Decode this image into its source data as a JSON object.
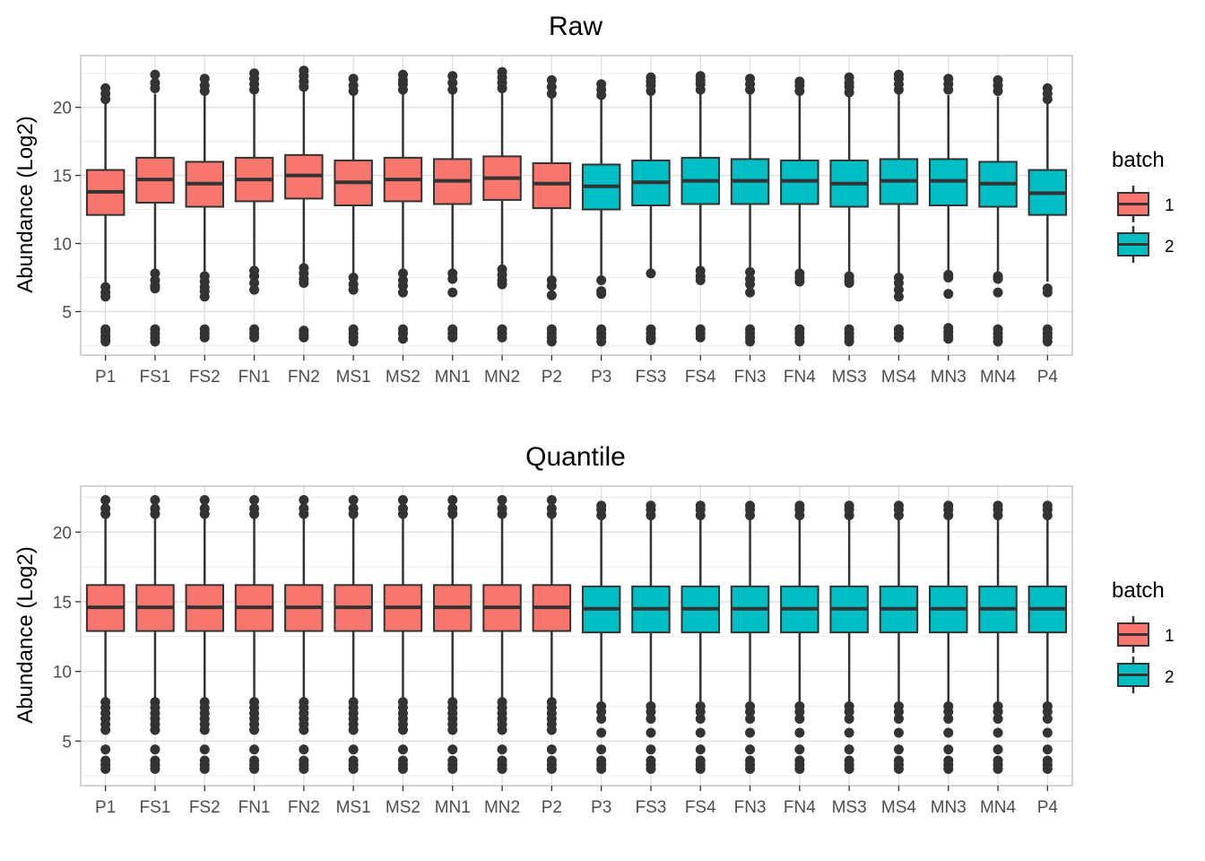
{
  "chart_data": [
    {
      "type": "box",
      "title": "Raw",
      "ylabel": "Abundance (Log2)",
      "ylim": [
        1.8,
        23.8
      ],
      "yticks": [
        5,
        10,
        15,
        20
      ],
      "grid": true,
      "legend_position": "right",
      "legend_title": "batch",
      "legend_entries": [
        {
          "label": "1",
          "color": "#F8766D"
        },
        {
          "label": "2",
          "color": "#00BFC4"
        }
      ],
      "categories": [
        "P1",
        "FS1",
        "FS2",
        "FN1",
        "FN2",
        "MS1",
        "MS2",
        "MN1",
        "MN2",
        "P2",
        "P3",
        "FS3",
        "FS4",
        "FN3",
        "FN4",
        "MS3",
        "MS4",
        "MN3",
        "MN4",
        "P4"
      ],
      "batch": [
        "1",
        "1",
        "1",
        "1",
        "1",
        "1",
        "1",
        "1",
        "1",
        "1",
        "2",
        "2",
        "2",
        "2",
        "2",
        "2",
        "2",
        "2",
        "2",
        "2"
      ],
      "boxes": [
        {
          "q1": 12.1,
          "median": 13.8,
          "q3": 15.4,
          "whisker_low": 7.0,
          "whisker_high": 20.4,
          "outliers_low": [
            6.8,
            6.4,
            6.1,
            3.7,
            3.5,
            3.2,
            3.0,
            2.8
          ],
          "outliers_high": [
            20.6,
            21.0,
            21.4
          ]
        },
        {
          "q1": 13.0,
          "median": 14.7,
          "q3": 16.3,
          "whisker_low": 8.0,
          "whisker_high": 21.0,
          "outliers_low": [
            7.8,
            7.3,
            6.9,
            6.7,
            3.7,
            3.4,
            3.1,
            2.8
          ],
          "outliers_high": [
            21.4,
            21.8,
            22.4
          ]
        },
        {
          "q1": 12.7,
          "median": 14.4,
          "q3": 16.0,
          "whisker_low": 7.8,
          "whisker_high": 20.9,
          "outliers_low": [
            7.6,
            7.2,
            6.8,
            6.5,
            6.1,
            3.7,
            3.4,
            3.1
          ],
          "outliers_high": [
            21.2,
            21.6,
            22.1
          ]
        },
        {
          "q1": 13.1,
          "median": 14.7,
          "q3": 16.3,
          "whisker_low": 8.1,
          "whisker_high": 21.0,
          "outliers_low": [
            8.0,
            7.6,
            7.1,
            6.6,
            3.7,
            3.4,
            3.1
          ],
          "outliers_high": [
            21.3,
            21.7,
            22.1,
            22.5
          ]
        },
        {
          "q1": 13.3,
          "median": 15.0,
          "q3": 16.5,
          "whisker_low": 8.4,
          "whisker_high": 21.2,
          "outliers_low": [
            8.2,
            7.8,
            7.4,
            7.1,
            3.6,
            3.3,
            3.1
          ],
          "outliers_high": [
            21.5,
            21.9,
            22.3,
            22.7
          ]
        },
        {
          "q1": 12.8,
          "median": 14.5,
          "q3": 16.1,
          "whisker_low": 7.7,
          "whisker_high": 20.9,
          "outliers_low": [
            7.5,
            7.0,
            6.6,
            3.7,
            3.4,
            3.1,
            2.8
          ],
          "outliers_high": [
            21.2,
            21.6,
            22.1
          ]
        },
        {
          "q1": 13.1,
          "median": 14.7,
          "q3": 16.3,
          "whisker_low": 8.0,
          "whisker_high": 21.0,
          "outliers_low": [
            7.8,
            7.3,
            6.9,
            6.4,
            3.7,
            3.4,
            3.0
          ],
          "outliers_high": [
            21.3,
            21.7,
            22.0,
            22.4
          ]
        },
        {
          "q1": 12.9,
          "median": 14.6,
          "q3": 16.2,
          "whisker_low": 8.0,
          "whisker_high": 21.0,
          "outliers_low": [
            7.8,
            7.4,
            6.4,
            3.7,
            3.4,
            3.1
          ],
          "outliers_high": [
            21.3,
            21.8,
            22.3
          ]
        },
        {
          "q1": 13.2,
          "median": 14.8,
          "q3": 16.4,
          "whisker_low": 8.3,
          "whisker_high": 21.1,
          "outliers_low": [
            8.1,
            7.7,
            7.3,
            7.0,
            3.7,
            3.4,
            3.1
          ],
          "outliers_high": [
            21.4,
            21.8,
            22.2,
            22.6
          ]
        },
        {
          "q1": 12.6,
          "median": 14.4,
          "q3": 15.9,
          "whisker_low": 7.6,
          "whisker_high": 20.7,
          "outliers_low": [
            7.3,
            6.9,
            6.2,
            3.7,
            3.4,
            3.1,
            2.8
          ],
          "outliers_high": [
            21.0,
            21.5,
            22.0
          ]
        },
        {
          "q1": 12.5,
          "median": 14.2,
          "q3": 15.8,
          "whisker_low": 7.5,
          "whisker_high": 20.6,
          "outliers_low": [
            7.3,
            6.5,
            6.3,
            3.7,
            3.4,
            3.1,
            2.8
          ],
          "outliers_high": [
            20.9,
            21.3,
            21.7
          ]
        },
        {
          "q1": 12.8,
          "median": 14.5,
          "q3": 16.1,
          "whisker_low": 8.0,
          "whisker_high": 20.9,
          "outliers_low": [
            7.8,
            3.7,
            3.4,
            3.1,
            2.9
          ],
          "outliers_high": [
            21.2,
            21.6,
            21.9,
            22.2
          ]
        },
        {
          "q1": 12.9,
          "median": 14.6,
          "q3": 16.3,
          "whisker_low": 8.1,
          "whisker_high": 21.0,
          "outliers_low": [
            8.0,
            7.6,
            7.3,
            3.7,
            3.4,
            3.1
          ],
          "outliers_high": [
            21.3,
            21.7,
            22.0,
            22.3
          ]
        },
        {
          "q1": 12.9,
          "median": 14.6,
          "q3": 16.2,
          "whisker_low": 8.0,
          "whisker_high": 21.0,
          "outliers_low": [
            7.9,
            7.4,
            7.0,
            6.4,
            3.7,
            3.4,
            3.1,
            2.8
          ],
          "outliers_high": [
            21.3,
            21.7,
            22.1
          ]
        },
        {
          "q1": 12.9,
          "median": 14.6,
          "q3": 16.1,
          "whisker_low": 8.0,
          "whisker_high": 20.9,
          "outliers_low": [
            7.8,
            7.5,
            7.2,
            3.7,
            3.4,
            3.1,
            2.8
          ],
          "outliers_high": [
            21.2,
            21.6,
            21.9
          ]
        },
        {
          "q1": 12.7,
          "median": 14.4,
          "q3": 16.1,
          "whisker_low": 7.8,
          "whisker_high": 20.8,
          "outliers_low": [
            7.6,
            7.3,
            7.1,
            3.7,
            3.4,
            3.1,
            2.8
          ],
          "outliers_high": [
            21.1,
            21.5,
            21.8,
            22.2
          ]
        },
        {
          "q1": 12.9,
          "median": 14.6,
          "q3": 16.2,
          "whisker_low": 7.7,
          "whisker_high": 21.0,
          "outliers_low": [
            7.5,
            7.1,
            6.6,
            6.1,
            3.7,
            3.4,
            3.1
          ],
          "outliers_high": [
            21.3,
            21.7,
            22.1,
            22.4
          ]
        },
        {
          "q1": 12.8,
          "median": 14.6,
          "q3": 16.2,
          "whisker_low": 7.9,
          "whisker_high": 20.9,
          "outliers_low": [
            7.7,
            7.5,
            6.3,
            3.8,
            3.5,
            3.2,
            3.0
          ],
          "outliers_high": [
            21.3,
            21.7,
            22.1
          ]
        },
        {
          "q1": 12.7,
          "median": 14.4,
          "q3": 16.0,
          "whisker_low": 7.8,
          "whisker_high": 20.8,
          "outliers_low": [
            7.6,
            7.4,
            6.4,
            3.7,
            3.4,
            3.1,
            2.8
          ],
          "outliers_high": [
            21.2,
            21.6,
            22.0
          ]
        },
        {
          "q1": 12.1,
          "median": 13.7,
          "q3": 15.4,
          "whisker_low": 7.2,
          "whisker_high": 20.4,
          "outliers_low": [
            6.7,
            6.4,
            3.7,
            3.4,
            3.1,
            2.8
          ],
          "outliers_high": [
            20.6,
            21.0,
            21.4
          ]
        }
      ]
    },
    {
      "type": "box",
      "title": "Quantile",
      "ylabel": "Abundance (Log2)",
      "ylim": [
        1.8,
        23.3
      ],
      "yticks": [
        5,
        10,
        15,
        20
      ],
      "grid": true,
      "legend_position": "right",
      "legend_title": "batch",
      "legend_entries": [
        {
          "label": "1",
          "color": "#F8766D"
        },
        {
          "label": "2",
          "color": "#00BFC4"
        }
      ],
      "categories": [
        "P1",
        "FS1",
        "FS2",
        "FN1",
        "FN2",
        "MS1",
        "MS2",
        "MN1",
        "MN2",
        "P2",
        "P3",
        "FS3",
        "FS4",
        "FN3",
        "FN4",
        "MS3",
        "MS4",
        "MN3",
        "MN4",
        "P4"
      ],
      "batch": [
        "1",
        "1",
        "1",
        "1",
        "1",
        "1",
        "1",
        "1",
        "1",
        "1",
        "2",
        "2",
        "2",
        "2",
        "2",
        "2",
        "2",
        "2",
        "2",
        "2"
      ],
      "boxes": [
        {
          "q1": 12.9,
          "median": 14.6,
          "q3": 16.2,
          "whisker_low": 8.0,
          "whisker_high": 21.0,
          "outliers_low": [
            7.8,
            7.4,
            7.0,
            6.6,
            6.2,
            5.8,
            4.4,
            3.6,
            3.3,
            3.0
          ],
          "outliers_high": [
            21.3,
            21.7,
            22.3
          ]
        },
        {
          "q1": 12.9,
          "median": 14.6,
          "q3": 16.2,
          "whisker_low": 8.0,
          "whisker_high": 21.0,
          "outliers_low": [
            7.8,
            7.4,
            7.0,
            6.6,
            6.2,
            5.8,
            4.4,
            3.6,
            3.3,
            3.0
          ],
          "outliers_high": [
            21.3,
            21.7,
            22.3
          ]
        },
        {
          "q1": 12.9,
          "median": 14.6,
          "q3": 16.2,
          "whisker_low": 8.0,
          "whisker_high": 21.0,
          "outliers_low": [
            7.8,
            7.4,
            7.0,
            6.6,
            6.2,
            5.8,
            4.4,
            3.6,
            3.3,
            3.0
          ],
          "outliers_high": [
            21.3,
            21.7,
            22.3
          ]
        },
        {
          "q1": 12.9,
          "median": 14.6,
          "q3": 16.2,
          "whisker_low": 8.0,
          "whisker_high": 21.0,
          "outliers_low": [
            7.8,
            7.4,
            7.0,
            6.6,
            6.2,
            5.8,
            4.4,
            3.6,
            3.3,
            3.0
          ],
          "outliers_high": [
            21.3,
            21.7,
            22.3
          ]
        },
        {
          "q1": 12.9,
          "median": 14.6,
          "q3": 16.2,
          "whisker_low": 8.0,
          "whisker_high": 21.0,
          "outliers_low": [
            7.8,
            7.4,
            7.0,
            6.6,
            6.2,
            5.8,
            4.4,
            3.6,
            3.3,
            3.0
          ],
          "outliers_high": [
            21.3,
            21.7,
            22.3
          ]
        },
        {
          "q1": 12.9,
          "median": 14.6,
          "q3": 16.2,
          "whisker_low": 8.0,
          "whisker_high": 21.0,
          "outliers_low": [
            7.8,
            7.4,
            7.0,
            6.6,
            6.2,
            5.8,
            4.4,
            3.6,
            3.3,
            3.0
          ],
          "outliers_high": [
            21.3,
            21.7,
            22.3
          ]
        },
        {
          "q1": 12.9,
          "median": 14.6,
          "q3": 16.2,
          "whisker_low": 8.0,
          "whisker_high": 21.0,
          "outliers_low": [
            7.8,
            7.4,
            7.0,
            6.6,
            6.2,
            5.8,
            4.4,
            3.6,
            3.3,
            3.0
          ],
          "outliers_high": [
            21.3,
            21.7,
            22.3
          ]
        },
        {
          "q1": 12.9,
          "median": 14.6,
          "q3": 16.2,
          "whisker_low": 8.0,
          "whisker_high": 21.0,
          "outliers_low": [
            7.8,
            7.4,
            7.0,
            6.6,
            6.2,
            5.8,
            4.4,
            3.6,
            3.3,
            3.0
          ],
          "outliers_high": [
            21.3,
            21.7,
            22.3
          ]
        },
        {
          "q1": 12.9,
          "median": 14.6,
          "q3": 16.2,
          "whisker_low": 8.0,
          "whisker_high": 21.0,
          "outliers_low": [
            7.8,
            7.4,
            7.0,
            6.6,
            6.2,
            5.8,
            4.4,
            3.6,
            3.3,
            3.0
          ],
          "outliers_high": [
            21.3,
            21.7,
            22.3
          ]
        },
        {
          "q1": 12.9,
          "median": 14.6,
          "q3": 16.2,
          "whisker_low": 8.0,
          "whisker_high": 21.0,
          "outliers_low": [
            7.8,
            7.4,
            7.0,
            6.6,
            6.2,
            5.8,
            4.4,
            3.6,
            3.3,
            3.0
          ],
          "outliers_high": [
            21.3,
            21.7,
            22.3
          ]
        },
        {
          "q1": 12.8,
          "median": 14.5,
          "q3": 16.1,
          "whisker_low": 7.7,
          "whisker_high": 20.9,
          "outliers_low": [
            7.5,
            7.1,
            6.6,
            5.6,
            4.4,
            3.6,
            3.3,
            3.0
          ],
          "outliers_high": [
            21.2,
            21.6,
            21.9
          ]
        },
        {
          "q1": 12.8,
          "median": 14.5,
          "q3": 16.1,
          "whisker_low": 7.7,
          "whisker_high": 20.9,
          "outliers_low": [
            7.5,
            7.1,
            6.6,
            5.6,
            4.4,
            3.6,
            3.3,
            3.0
          ],
          "outliers_high": [
            21.2,
            21.6,
            21.9
          ]
        },
        {
          "q1": 12.8,
          "median": 14.5,
          "q3": 16.1,
          "whisker_low": 7.7,
          "whisker_high": 20.9,
          "outliers_low": [
            7.5,
            7.1,
            6.6,
            5.6,
            4.4,
            3.6,
            3.3,
            3.0
          ],
          "outliers_high": [
            21.2,
            21.6,
            21.9
          ]
        },
        {
          "q1": 12.8,
          "median": 14.5,
          "q3": 16.1,
          "whisker_low": 7.7,
          "whisker_high": 20.9,
          "outliers_low": [
            7.5,
            7.1,
            6.6,
            5.6,
            4.4,
            3.6,
            3.3,
            3.0
          ],
          "outliers_high": [
            21.2,
            21.6,
            21.9
          ]
        },
        {
          "q1": 12.8,
          "median": 14.5,
          "q3": 16.1,
          "whisker_low": 7.7,
          "whisker_high": 20.9,
          "outliers_low": [
            7.5,
            7.1,
            6.6,
            5.6,
            4.4,
            3.6,
            3.3,
            3.0
          ],
          "outliers_high": [
            21.2,
            21.6,
            21.9
          ]
        },
        {
          "q1": 12.8,
          "median": 14.5,
          "q3": 16.1,
          "whisker_low": 7.7,
          "whisker_high": 20.9,
          "outliers_low": [
            7.5,
            7.1,
            6.6,
            5.6,
            4.4,
            3.6,
            3.3,
            3.0
          ],
          "outliers_high": [
            21.2,
            21.6,
            21.9
          ]
        },
        {
          "q1": 12.8,
          "median": 14.5,
          "q3": 16.1,
          "whisker_low": 7.7,
          "whisker_high": 20.9,
          "outliers_low": [
            7.5,
            7.1,
            6.6,
            5.6,
            4.4,
            3.6,
            3.3,
            3.0
          ],
          "outliers_high": [
            21.2,
            21.6,
            21.9
          ]
        },
        {
          "q1": 12.8,
          "median": 14.5,
          "q3": 16.1,
          "whisker_low": 7.7,
          "whisker_high": 20.9,
          "outliers_low": [
            7.5,
            7.1,
            6.6,
            5.6,
            4.4,
            3.6,
            3.3,
            3.0
          ],
          "outliers_high": [
            21.2,
            21.6,
            21.9
          ]
        },
        {
          "q1": 12.8,
          "median": 14.5,
          "q3": 16.1,
          "whisker_low": 7.7,
          "whisker_high": 20.9,
          "outliers_low": [
            7.5,
            7.1,
            6.6,
            5.6,
            4.4,
            3.6,
            3.3,
            3.0
          ],
          "outliers_high": [
            21.2,
            21.6,
            21.9
          ]
        },
        {
          "q1": 12.8,
          "median": 14.5,
          "q3": 16.1,
          "whisker_low": 7.7,
          "whisker_high": 20.9,
          "outliers_low": [
            7.5,
            7.1,
            6.6,
            5.6,
            4.4,
            3.6,
            3.3,
            3.0
          ],
          "outliers_high": [
            21.2,
            21.6,
            21.9
          ]
        }
      ]
    }
  ]
}
